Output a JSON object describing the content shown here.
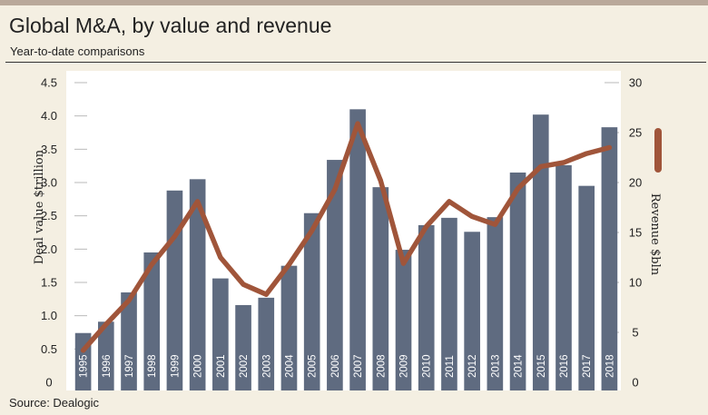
{
  "header": {
    "title": "Global M&A, by value and revenue",
    "subtitle": "Year-to-date comparisons"
  },
  "footer": {
    "source": "Source: Dealogic"
  },
  "colors": {
    "background": "#f4efe2",
    "plot_background": "#ffffff",
    "bar": "#5f6b80",
    "line": "#a0553a",
    "top_bar": "#b9a89a"
  },
  "chart_data": {
    "type": "bar",
    "categories": [
      "1995",
      "1996",
      "1997",
      "1998",
      "1999",
      "2000",
      "2001",
      "2002",
      "2003",
      "2004",
      "2005",
      "2006",
      "2007",
      "2008",
      "2009",
      "2010",
      "2011",
      "2012",
      "2013",
      "2014",
      "2015",
      "2016",
      "2017",
      "2018"
    ],
    "category_labels": [
      "1995",
      "1996",
      "1997",
      "1998",
      "1999",
      "2000",
      "2001",
      "2002",
      "2003",
      "2004",
      "2005",
      "2006",
      "2007",
      "2008",
      "2009",
      "2010",
      "2011",
      "2012",
      "2013",
      "2014",
      "2015",
      "2016",
      "2017",
      "2018"
    ],
    "series": [
      {
        "name": "Deal value $trillion",
        "type": "bar",
        "axis": "left",
        "values": [
          0.74,
          0.91,
          1.35,
          1.95,
          2.88,
          3.05,
          1.56,
          1.16,
          1.27,
          1.75,
          2.54,
          3.34,
          4.1,
          2.93,
          1.99,
          2.36,
          2.47,
          2.26,
          2.48,
          3.15,
          4.02,
          3.26,
          2.95,
          3.83
        ]
      },
      {
        "name": "Revenue $bln",
        "type": "line",
        "axis": "right",
        "values": [
          3.2,
          5.8,
          8.2,
          11.8,
          14.6,
          18.1,
          12.5,
          9.8,
          8.8,
          11.8,
          15.2,
          19.3,
          25.9,
          20.2,
          11.9,
          15.6,
          18.1,
          16.6,
          15.8,
          19.4,
          21.6,
          22.0,
          22.9,
          23.5
        ]
      }
    ],
    "y_left": {
      "label": "Deal value $trillion",
      "lim": [
        0,
        4.5
      ],
      "ticks": [
        "0",
        "0.5",
        "1.0",
        "1.5",
        "2.0",
        "2.5",
        "3.0",
        "3.5",
        "4.0",
        "4.5"
      ]
    },
    "y_right": {
      "label": "Revenue $bln",
      "lim": [
        0,
        30
      ],
      "ticks": [
        "0",
        "5",
        "10",
        "15",
        "20",
        "25",
        "30"
      ]
    },
    "grid": false,
    "legend": "none"
  }
}
